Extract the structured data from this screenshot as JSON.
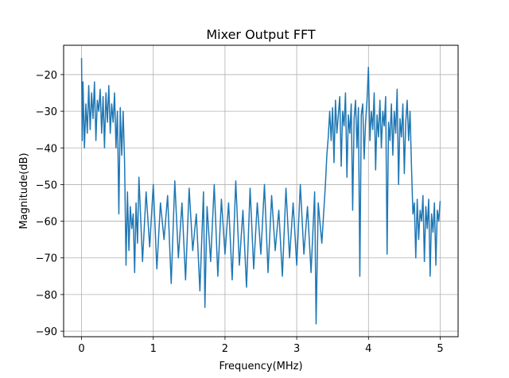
{
  "chart_data": {
    "type": "line",
    "title": "Mixer Output FFT",
    "xlabel": "Frequency(MHz)",
    "ylabel": "Magnitude(dB)",
    "xlim": [
      -0.25,
      5.25
    ],
    "ylim": [
      -91.5,
      -12
    ],
    "xticks": [
      0,
      1,
      2,
      3,
      4,
      5
    ],
    "xtick_labels": [
      "0",
      "1",
      "2",
      "3",
      "4",
      "5"
    ],
    "yticks": [
      -20,
      -30,
      -40,
      -50,
      -60,
      -70,
      -80,
      -90
    ],
    "ytick_labels": [
      "−20",
      "−30",
      "−40",
      "−50",
      "−60",
      "−70",
      "−80",
      "−90"
    ],
    "grid": true,
    "line_color": "#1f77b4",
    "series": [
      {
        "x": [
          0.0,
          0.01,
          0.02,
          0.04,
          0.06,
          0.08,
          0.1,
          0.12,
          0.14,
          0.16,
          0.18,
          0.2,
          0.22,
          0.24,
          0.26,
          0.28,
          0.3,
          0.32,
          0.34,
          0.36,
          0.38,
          0.4,
          0.42,
          0.44,
          0.46,
          0.48,
          0.5,
          0.52,
          0.54,
          0.56,
          0.58,
          0.6,
          0.62,
          0.64,
          0.66,
          0.68,
          0.7,
          0.72,
          0.74,
          0.76,
          0.78,
          0.8,
          0.85,
          0.9,
          0.95,
          1.0,
          1.05,
          1.1,
          1.15,
          1.2,
          1.25,
          1.3,
          1.35,
          1.4,
          1.45,
          1.5,
          1.55,
          1.6,
          1.65,
          1.7,
          1.72,
          1.75,
          1.8,
          1.85,
          1.9,
          1.95,
          2.0,
          2.05,
          2.1,
          2.15,
          2.2,
          2.25,
          2.3,
          2.35,
          2.4,
          2.45,
          2.5,
          2.55,
          2.6,
          2.65,
          2.7,
          2.75,
          2.8,
          2.85,
          2.9,
          2.95,
          3.0,
          3.05,
          3.1,
          3.15,
          3.2,
          3.25,
          3.27,
          3.3,
          3.35,
          3.4,
          3.42,
          3.44,
          3.46,
          3.48,
          3.5,
          3.52,
          3.54,
          3.56,
          3.58,
          3.6,
          3.62,
          3.64,
          3.66,
          3.68,
          3.7,
          3.72,
          3.74,
          3.76,
          3.78,
          3.8,
          3.82,
          3.84,
          3.86,
          3.88,
          3.9,
          3.92,
          3.94,
          3.96,
          3.98,
          4.0,
          4.02,
          4.04,
          4.06,
          4.08,
          4.1,
          4.12,
          4.14,
          4.16,
          4.18,
          4.2,
          4.22,
          4.24,
          4.26,
          4.28,
          4.3,
          4.32,
          4.34,
          4.36,
          4.38,
          4.4,
          4.42,
          4.44,
          4.46,
          4.48,
          4.5,
          4.52,
          4.54,
          4.56,
          4.58,
          4.6,
          4.62,
          4.64,
          4.66,
          4.68,
          4.7,
          4.72,
          4.74,
          4.76,
          4.78,
          4.8,
          4.82,
          4.84,
          4.86,
          4.88,
          4.9,
          4.92,
          4.94,
          4.96,
          4.98,
          5.0
        ],
        "y": [
          -15.5,
          -38.0,
          -22.0,
          -40.0,
          -28.0,
          -36.0,
          -23.0,
          -35.0,
          -25.0,
          -32.0,
          -22.0,
          -38.0,
          -27.0,
          -30.0,
          -24.0,
          -36.0,
          -26.0,
          -40.0,
          -25.0,
          -33.0,
          -23.0,
          -36.0,
          -28.0,
          -33.0,
          -25.0,
          -40.0,
          -30.0,
          -58.0,
          -29.0,
          -42.0,
          -30.0,
          -44.0,
          -72.0,
          -52.0,
          -68.0,
          -56.0,
          -62.0,
          -58.0,
          -74.0,
          -55.0,
          -66.0,
          -48.0,
          -71.0,
          -52.0,
          -67.0,
          -50.0,
          -73.0,
          -55.0,
          -65.0,
          -53.0,
          -77.0,
          -49.0,
          -70.0,
          -55.0,
          -76.0,
          -51.0,
          -68.0,
          -58.0,
          -79.0,
          -52.0,
          -83.5,
          -56.0,
          -71.0,
          -50.0,
          -75.0,
          -54.0,
          -69.0,
          -55.0,
          -76.0,
          -49.0,
          -72.0,
          -57.0,
          -78.0,
          -51.0,
          -73.0,
          -55.0,
          -69.0,
          -50.0,
          -74.0,
          -53.0,
          -68.0,
          -57.0,
          -75.0,
          -51.0,
          -70.0,
          -55.0,
          -72.0,
          -50.0,
          -69.0,
          -56.0,
          -74.0,
          -52.0,
          -88.0,
          -55.0,
          -66.0,
          -50.0,
          -42.0,
          -37.0,
          -30.0,
          -38.0,
          -29.0,
          -44.0,
          -27.0,
          -36.0,
          -31.0,
          -26.0,
          -45.0,
          -30.0,
          -34.0,
          -25.0,
          -48.0,
          -31.0,
          -36.0,
          -28.0,
          -57.0,
          -32.0,
          -27.0,
          -40.0,
          -29.0,
          -75.0,
          -31.0,
          -28.0,
          -43.0,
          -33.0,
          -27.0,
          -18.0,
          -38.0,
          -30.0,
          -35.0,
          -25.0,
          -46.0,
          -31.0,
          -37.0,
          -27.0,
          -40.0,
          -30.0,
          -34.0,
          -26.0,
          -69.0,
          -33.0,
          -38.0,
          -28.0,
          -42.0,
          -30.0,
          -36.0,
          -24.0,
          -50.0,
          -32.0,
          -37.0,
          -28.0,
          -47.0,
          -33.0,
          -27.0,
          -38.0,
          -30.0,
          -45.0,
          -58.0,
          -55.0,
          -70.0,
          -54.0,
          -65.0,
          -57.0,
          -60.0,
          -53.0,
          -71.0,
          -56.0,
          -62.0,
          -54.0,
          -75.0,
          -58.0,
          -63.0,
          -55.0,
          -72.0,
          -57.0,
          -60.0,
          -54.5
        ]
      }
    ]
  }
}
